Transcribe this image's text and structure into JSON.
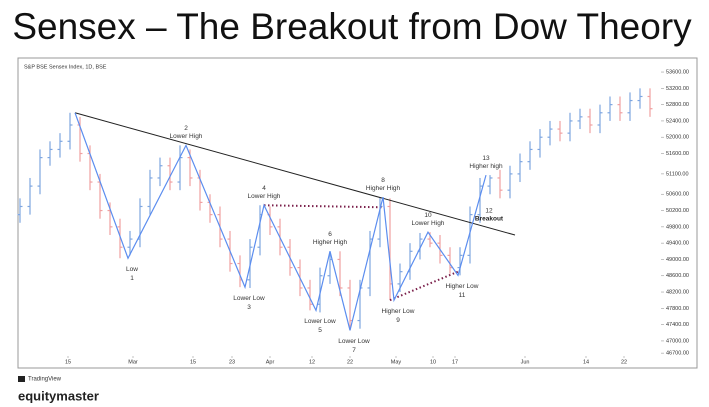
{
  "chart_data": {
    "type": "ohlc",
    "title": "Sensex – The Breakout from Dow Theory",
    "symbol_label": "S&P BSE Sensex Index, 1D, BSE",
    "source": "TradingView",
    "brand": "equitymaster",
    "up_color": "#7ea6e0",
    "down_color": "#f0a0a0",
    "open": [
      50100,
      50300,
      50800,
      51500,
      51700,
      51900,
      52300,
      51600,
      50900,
      50200,
      49800,
      49300,
      49500,
      50300,
      51000,
      51300,
      50900,
      51500,
      51000,
      50400,
      50100,
      49500,
      48900,
      48500,
      49300,
      50100,
      49800,
      49300,
      48800,
      48300,
      47900,
      48600,
      49000,
      48300,
      47500,
      48300,
      49500,
      50300,
      48400,
      48700,
      49200,
      49500,
      49400,
      49100,
      48800,
      49100,
      50100,
      50800,
      51000,
      50700,
      51100,
      51400,
      51700,
      52000,
      52200,
      52100,
      52400,
      52500,
      52300,
      52600,
      52800,
      52600,
      52900,
      53000
    ],
    "high": [
      50500,
      51000,
      51700,
      51900,
      52100,
      52600,
      52500,
      51800,
      51100,
      50400,
      50000,
      49700,
      50500,
      51200,
      51500,
      51500,
      51800,
      51700,
      51200,
      50600,
      50300,
      49700,
      49100,
      49500,
      50330,
      50300,
      50000,
      49500,
      49000,
      48500,
      48800,
      49200,
      49200,
      48500,
      48500,
      49700,
      50530,
      50500,
      48900,
      49400,
      49650,
      49670,
      49600,
      49300,
      49300,
      50300,
      51000,
      51070,
      51200,
      51300,
      51600,
      51900,
      52200,
      52400,
      52400,
      52600,
      52700,
      52700,
      52800,
      53000,
      53000,
      53100,
      53200,
      53200
    ],
    "low": [
      49900,
      50100,
      50600,
      51300,
      51500,
      51700,
      51400,
      50700,
      50000,
      49600,
      49030,
      49100,
      49300,
      50100,
      50800,
      50700,
      50700,
      50800,
      50200,
      49900,
      49300,
      48700,
      48320,
      48300,
      49100,
      49600,
      49100,
      48600,
      48100,
      47750,
      47700,
      48400,
      48100,
      47260,
      47300,
      48100,
      49300,
      48000,
      48200,
      48500,
      49000,
      49300,
      48900,
      48650,
      48610,
      48900,
      49900,
      50600,
      50500,
      50500,
      50900,
      51200,
      51500,
      51800,
      51900,
      51900,
      52200,
      52100,
      52100,
      52400,
      52400,
      52400,
      52700,
      52500
    ],
    "close": [
      50300,
      50800,
      51500,
      51700,
      51900,
      52300,
      51600,
      50900,
      50200,
      49800,
      49300,
      49500,
      50300,
      51000,
      51300,
      50900,
      51500,
      51000,
      50400,
      50100,
      49500,
      48900,
      48500,
      49300,
      50100,
      49800,
      49300,
      48800,
      48300,
      47900,
      48600,
      49000,
      48300,
      47500,
      48300,
      49500,
      50300,
      48400,
      48700,
      49200,
      49500,
      49400,
      49100,
      48800,
      49100,
      50100,
      50800,
      51000,
      50700,
      51100,
      51400,
      51700,
      52000,
      52200,
      52100,
      52400,
      52500,
      52300,
      52600,
      52800,
      52600,
      52900,
      53000,
      52700
    ],
    "xlim": [
      0,
      64
    ],
    "xticks": [
      {
        "value": 4.8,
        "label": "15"
      },
      {
        "value": 11.3,
        "label": "Mar"
      },
      {
        "value": 17.3,
        "label": "15"
      },
      {
        "value": 21.2,
        "label": "23"
      },
      {
        "value": 25,
        "label": "Apr"
      },
      {
        "value": 29.2,
        "label": "12"
      },
      {
        "value": 33,
        "label": "22"
      },
      {
        "value": 37.6,
        "label": "May"
      },
      {
        "value": 41.3,
        "label": "10"
      },
      {
        "value": 43.5,
        "label": "17"
      },
      {
        "value": 50.5,
        "label": "Jun"
      },
      {
        "value": 56.6,
        "label": "14"
      },
      {
        "value": 60.4,
        "label": "22"
      }
    ],
    "ylim": [
      46630,
      53920
    ],
    "yticks": [
      {
        "value": 53600,
        "label": "53600.00"
      },
      {
        "value": 53200,
        "label": "53200.00"
      },
      {
        "value": 52800,
        "label": "52800.00"
      },
      {
        "value": 52400,
        "label": "52400.00"
      },
      {
        "value": 52000,
        "label": "52000.00"
      },
      {
        "value": 51600,
        "label": "51600.00"
      },
      {
        "value": 51100,
        "label": "51100.00"
      },
      {
        "value": 50600,
        "label": "50600.00"
      },
      {
        "value": 50200,
        "label": "50200.00"
      },
      {
        "value": 49800,
        "label": "49800.00"
      },
      {
        "value": 49400,
        "label": "49400.00"
      },
      {
        "value": 49000,
        "label": "49000.00"
      },
      {
        "value": 48600,
        "label": "48600.00"
      },
      {
        "value": 48200,
        "label": "48200.00"
      },
      {
        "value": 47800,
        "label": "47800.00"
      },
      {
        "value": 47400,
        "label": "47400.00"
      },
      {
        "value": 47000,
        "label": "47000.00"
      },
      {
        "value": 46700,
        "label": "46700.00"
      }
    ],
    "swings": {
      "color": "#5b8def",
      "x": [
        5.5,
        10.8,
        16.6,
        22.5,
        24.4,
        29.6,
        31,
        33,
        36.3,
        37.4,
        40.8,
        43.8,
        46.6
      ],
      "values": [
        52600,
        49030,
        51800,
        48320,
        50330,
        47750,
        49200,
        47260,
        50530,
        48000,
        49670,
        48610,
        51070
      ],
      "labels": [
        null,
        "Low",
        "Lower High",
        "Lower Low",
        "Lower High",
        "Lower Low",
        "Higher High",
        "Lower Low",
        "Higher High",
        "Higher Low",
        "Lower High",
        "Higher Low",
        "Higher high"
      ],
      "numbers": [
        null,
        "1",
        "2",
        "3",
        "4",
        "5",
        "6",
        "7",
        "8",
        "9",
        "10",
        "11",
        "13"
      ]
    },
    "trendline": {
      "color": "#222222",
      "x": [
        5.5,
        49.5
      ],
      "values": [
        52600,
        49600
      ]
    },
    "resistance": {
      "color": "#7a1f4a",
      "x": [
        24.4,
        36.3
      ],
      "values": [
        50330,
        50280
      ]
    },
    "support": {
      "color": "#7a1f4a",
      "x": [
        37,
        43.8
      ],
      "values": [
        48000,
        48700
      ]
    },
    "breakout": {
      "number": "12",
      "label": "Breakout",
      "x": 46.5,
      "value": 49900
    }
  }
}
